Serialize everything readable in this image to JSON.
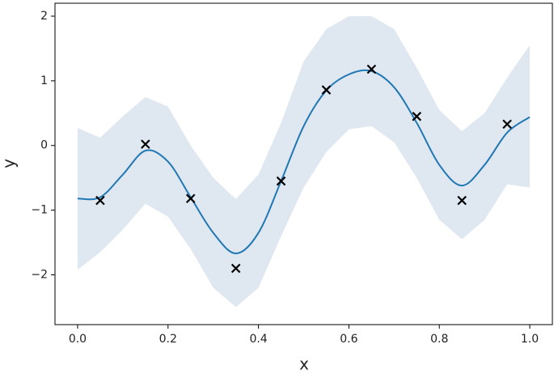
{
  "chart_data": {
    "type": "line",
    "x_label": "x",
    "y_label": "y",
    "xlim": [
      -0.05,
      1.05
    ],
    "ylim": [
      -2.77,
      2.2
    ],
    "xticks": [
      {
        "value": 0,
        "label": "0.0"
      },
      {
        "value": 0.2,
        "label": "0.2"
      },
      {
        "value": 0.4,
        "label": "0.4"
      },
      {
        "value": 0.6,
        "label": "0.6"
      },
      {
        "value": 0.8,
        "label": "0.8"
      },
      {
        "value": 1,
        "label": "1.0"
      }
    ],
    "yticks": [
      {
        "value": -2,
        "label": "−2"
      },
      {
        "value": -1,
        "label": "−1"
      },
      0,
      1,
      2
    ],
    "grid": false,
    "x": [
      0,
      0.05,
      0.1,
      0.15,
      0.2,
      0.25,
      0.3,
      0.35,
      0.4,
      0.45,
      0.5,
      0.55,
      0.6,
      0.65,
      0.7,
      0.75,
      0.8,
      0.85,
      0.9,
      0.95,
      1.0
    ],
    "series": [
      {
        "color": "#1f77b4",
        "values": [
          -0.82,
          -0.8,
          -0.45,
          -0.08,
          -0.25,
          -0.8,
          -1.35,
          -1.67,
          -1.35,
          -0.55,
          0.3,
          0.85,
          1.1,
          1.15,
          0.9,
          0.35,
          -0.3,
          -0.62,
          -0.3,
          0.2,
          0.44
        ]
      }
    ],
    "band": {
      "color": "#dfe7f0",
      "upper": [
        0.27,
        0.12,
        0.45,
        0.75,
        0.6,
        0.0,
        -0.5,
        -0.83,
        -0.45,
        0.35,
        1.3,
        1.8,
        2.0,
        2.0,
        1.8,
        1.2,
        0.55,
        0.22,
        0.5,
        1.05,
        1.55
      ],
      "lower": [
        -1.92,
        -1.65,
        -1.3,
        -0.9,
        -1.1,
        -1.6,
        -2.2,
        -2.5,
        -2.2,
        -1.4,
        -0.65,
        -0.1,
        0.25,
        0.3,
        0.05,
        -0.5,
        -1.15,
        -1.45,
        -1.15,
        -0.6,
        -0.65
      ]
    },
    "points": {
      "color": "#000000",
      "marker": "x",
      "x": [
        0.05,
        0.15,
        0.25,
        0.35,
        0.45,
        0.55,
        0.65,
        0.75,
        0.85,
        0.95
      ],
      "y": [
        -0.85,
        0.02,
        -0.82,
        -1.9,
        -0.55,
        0.86,
        1.18,
        0.45,
        -0.85,
        0.33
      ]
    }
  }
}
